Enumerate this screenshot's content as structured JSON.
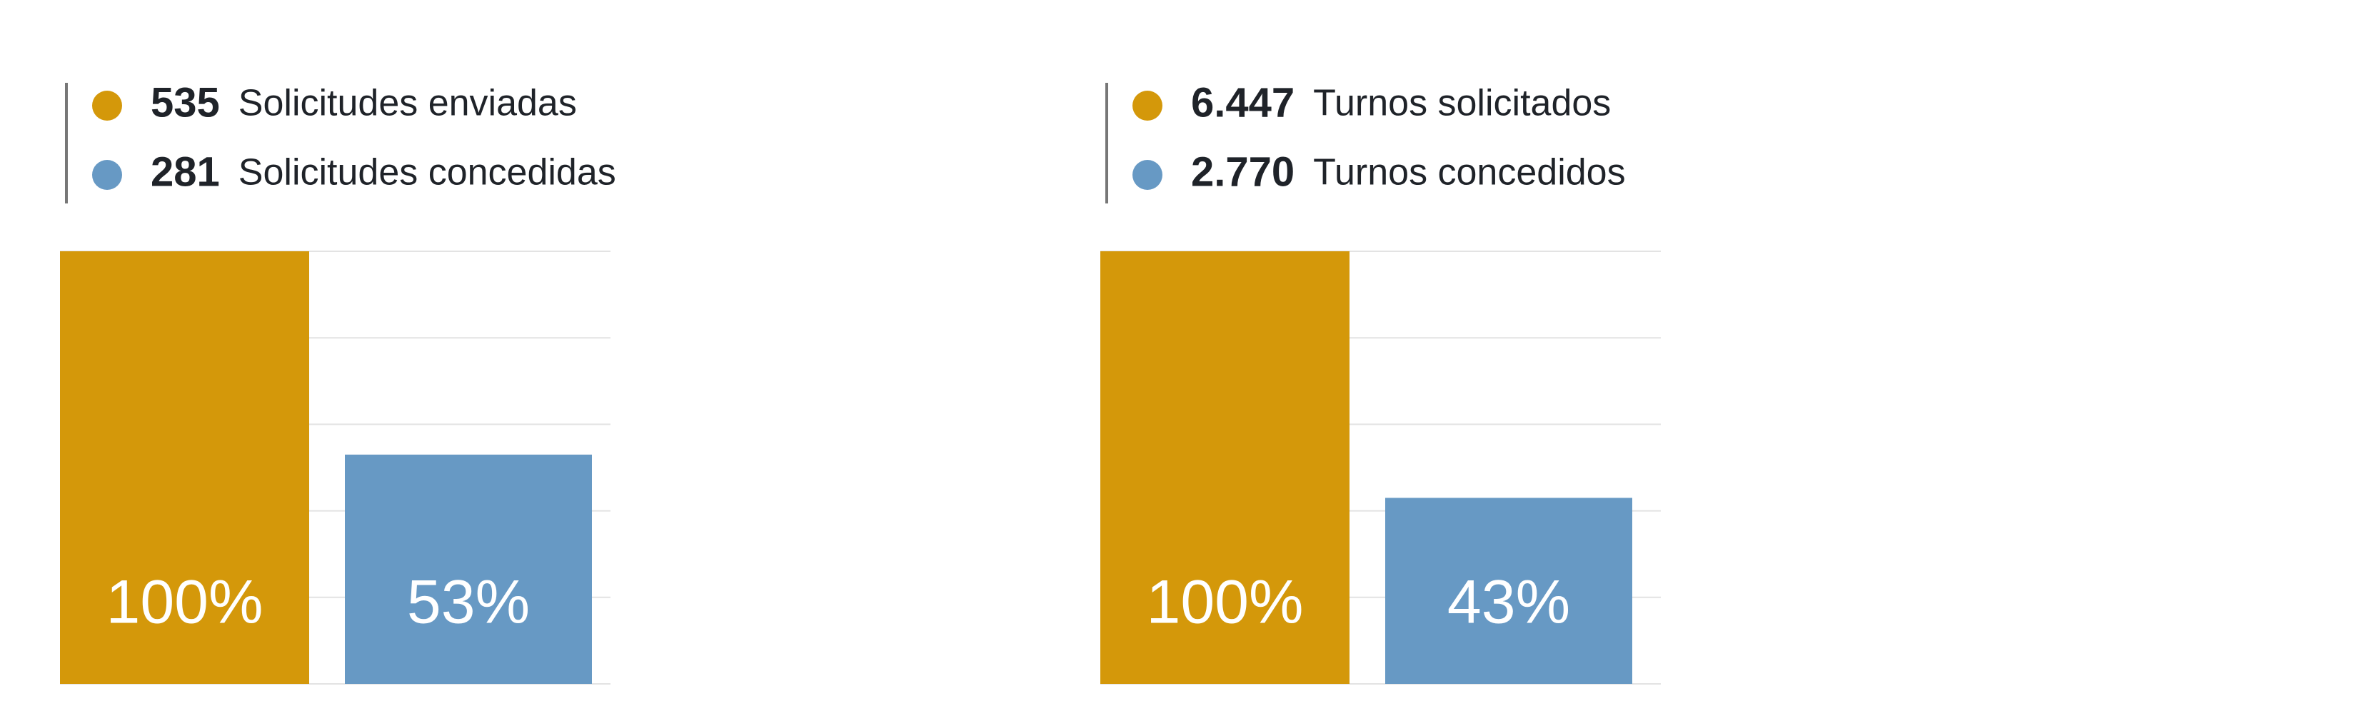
{
  "chart_data": [
    {
      "type": "bar",
      "ylim": [
        0,
        100
      ],
      "yticks": [
        0,
        20,
        40,
        60,
        80,
        100
      ],
      "grid": true,
      "series": [
        {
          "name": "Solicitudes enviadas",
          "color": "#d4980a",
          "total": 535,
          "values": [
            100
          ],
          "value_labels": [
            "100%"
          ]
        },
        {
          "name": "Solicitudes concedidas",
          "color": "#6799c4",
          "total": 281,
          "values": [
            53
          ],
          "value_labels": [
            "53%"
          ]
        }
      ]
    },
    {
      "type": "bar",
      "ylim": [
        0,
        100
      ],
      "yticks": [
        0,
        20,
        40,
        60,
        80,
        100
      ],
      "grid": true,
      "series": [
        {
          "name": "Turnos solicitados",
          "color": "#d4980a",
          "total": {
            "value": 6447,
            "label": "6.447"
          },
          "values": [
            100
          ],
          "value_labels": [
            "100%"
          ]
        },
        {
          "name": "Turnos concedidos",
          "color": "#6799c4",
          "total": {
            "value": 2770,
            "label": "2.770"
          },
          "values": [
            43
          ],
          "value_labels": [
            "43%"
          ]
        }
      ]
    }
  ]
}
